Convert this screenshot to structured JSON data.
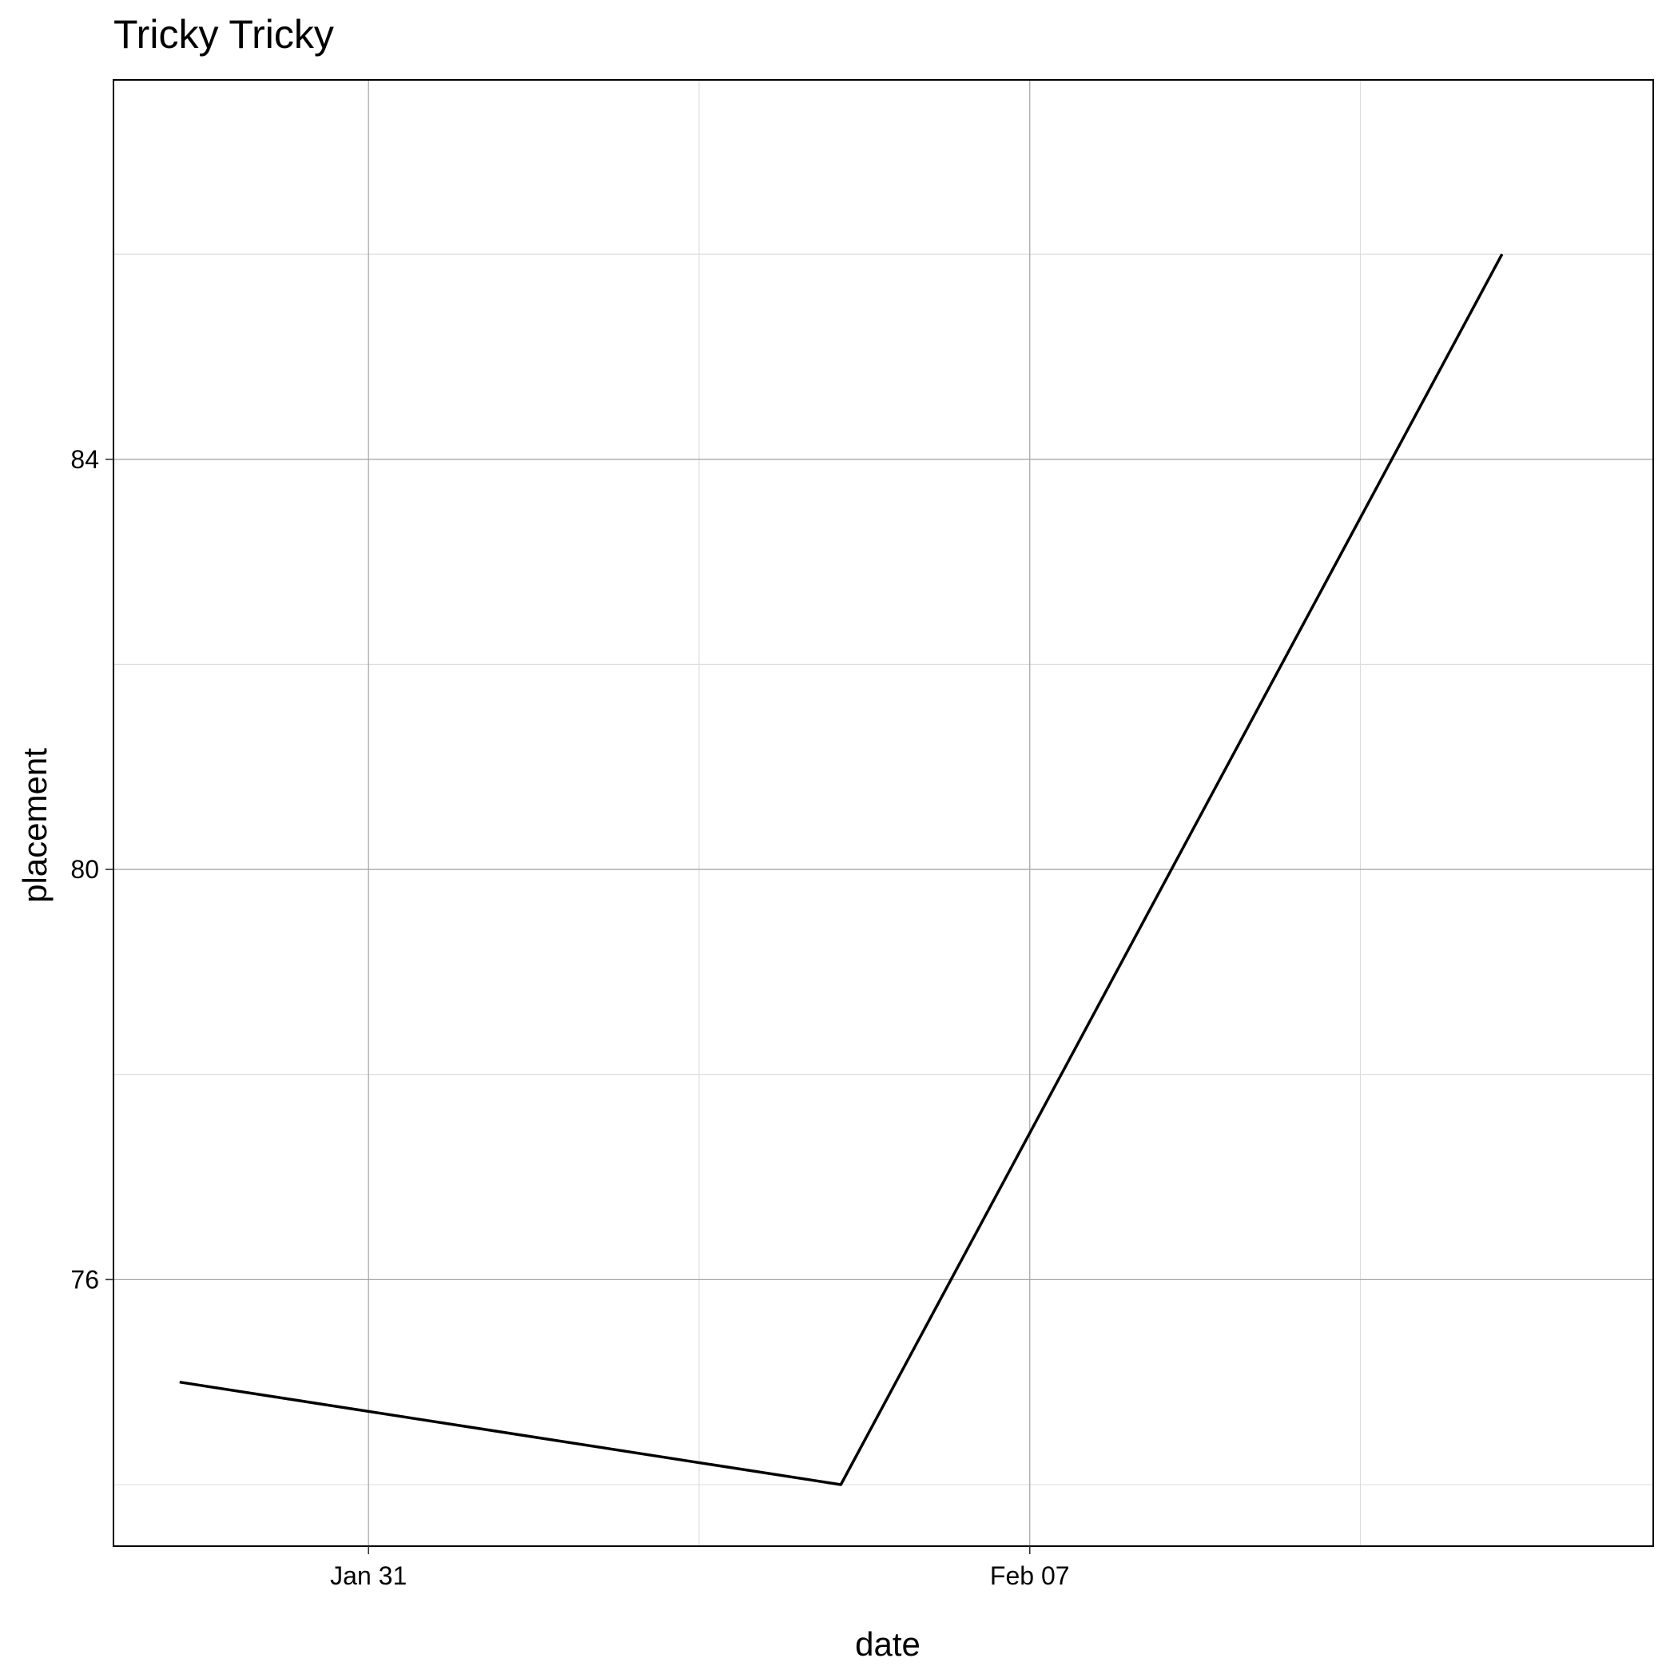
{
  "chart_data": {
    "type": "line",
    "title": "Tricky Tricky",
    "xlabel": "date",
    "ylabel": "placement",
    "x_type": "date",
    "x": [
      "2021-01-29",
      "2021-02-05",
      "2021-02-12"
    ],
    "series": [
      {
        "name": "placement",
        "values": [
          75,
          74,
          86
        ]
      }
    ],
    "xlim": [
      "2021-01-28.3",
      "2021-02-13.6"
    ],
    "ylim": [
      73.4,
      87.7
    ],
    "x_ticks": [
      {
        "date": "2021-01-31",
        "label": "Jan 31"
      },
      {
        "date": "2021-02-07",
        "label": "Feb 07"
      }
    ],
    "x_minor_ticks": [
      "2021-02-03.5",
      "2021-02-10.5"
    ],
    "y_ticks": [
      76,
      80,
      84
    ],
    "y_minor_ticks": [
      74,
      78,
      82,
      86
    ],
    "grid": true,
    "legend": "none"
  }
}
